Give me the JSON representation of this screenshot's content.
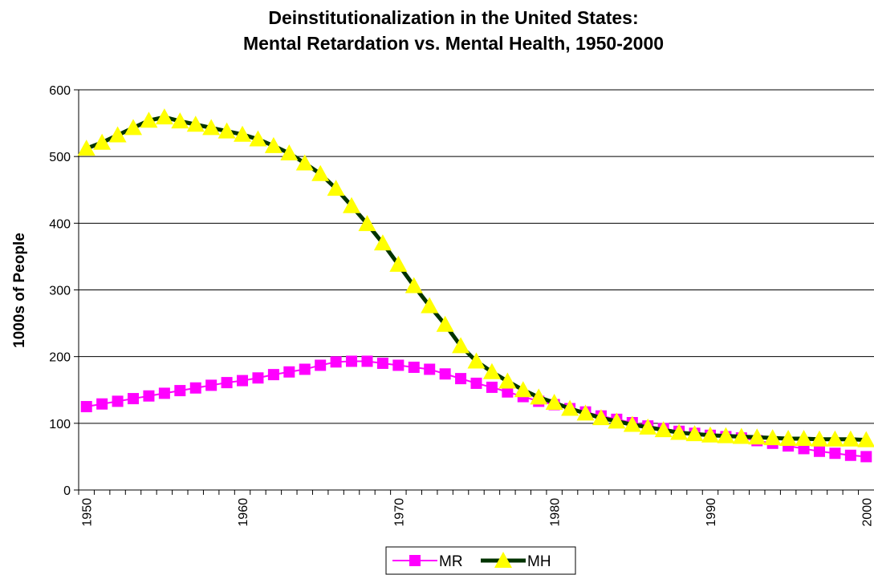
{
  "chart_data": {
    "type": "line",
    "title": [
      "Deinstitutionalization in the United States:",
      "Mental Retardation vs.  Mental Health, 1950-2000"
    ],
    "y_label": "1000s of  People",
    "x": [
      1950,
      1951,
      1952,
      1953,
      1954,
      1955,
      1956,
      1957,
      1958,
      1959,
      1960,
      1961,
      1962,
      1963,
      1964,
      1965,
      1966,
      1967,
      1968,
      1969,
      1970,
      1971,
      1972,
      1973,
      1974,
      1975,
      1976,
      1977,
      1978,
      1979,
      1980,
      1981,
      1982,
      1983,
      1984,
      1985,
      1986,
      1987,
      1988,
      1989,
      1990,
      1991,
      1992,
      1993,
      1994,
      1995,
      1996,
      1997,
      1998,
      1999,
      2000
    ],
    "xlim": [
      1949.5,
      2000.5
    ],
    "xticks": [
      1950,
      1960,
      1970,
      1980,
      1990,
      2000
    ],
    "ylim": [
      0,
      600
    ],
    "yticks": [
      0,
      100,
      200,
      300,
      400,
      500,
      600
    ],
    "grid": true,
    "legend": "bottom",
    "series": [
      {
        "name": "MR",
        "color": "#ff00ff",
        "marker": "square",
        "marker_color": "#ff00ff",
        "values": [
          125,
          129,
          133,
          137,
          141,
          145,
          149,
          153,
          157,
          161,
          164,
          168,
          173,
          177,
          181,
          187,
          192,
          193,
          193,
          190,
          187,
          184,
          181,
          174,
          167,
          160,
          154,
          147,
          140,
          133,
          128,
          122,
          117,
          111,
          106,
          101,
          96,
          92,
          88,
          85,
          82,
          80,
          78,
          74,
          70,
          66,
          62,
          58,
          55,
          52,
          50
        ]
      },
      {
        "name": "MH",
        "color": "#003300",
        "marker": "triangle",
        "marker_color": "#ffff00",
        "values": [
          512,
          521,
          532,
          543,
          554,
          559,
          553,
          548,
          543,
          538,
          533,
          526,
          516,
          505,
          490,
          474,
          452,
          426,
          399,
          370,
          338,
          306,
          276,
          248,
          216,
          193,
          177,
          163,
          150,
          139,
          131,
          122,
          115,
          108,
          103,
          98,
          94,
          90,
          86,
          84,
          82,
          81,
          80,
          79,
          78,
          77,
          77,
          76,
          76,
          76,
          75
        ]
      }
    ]
  }
}
